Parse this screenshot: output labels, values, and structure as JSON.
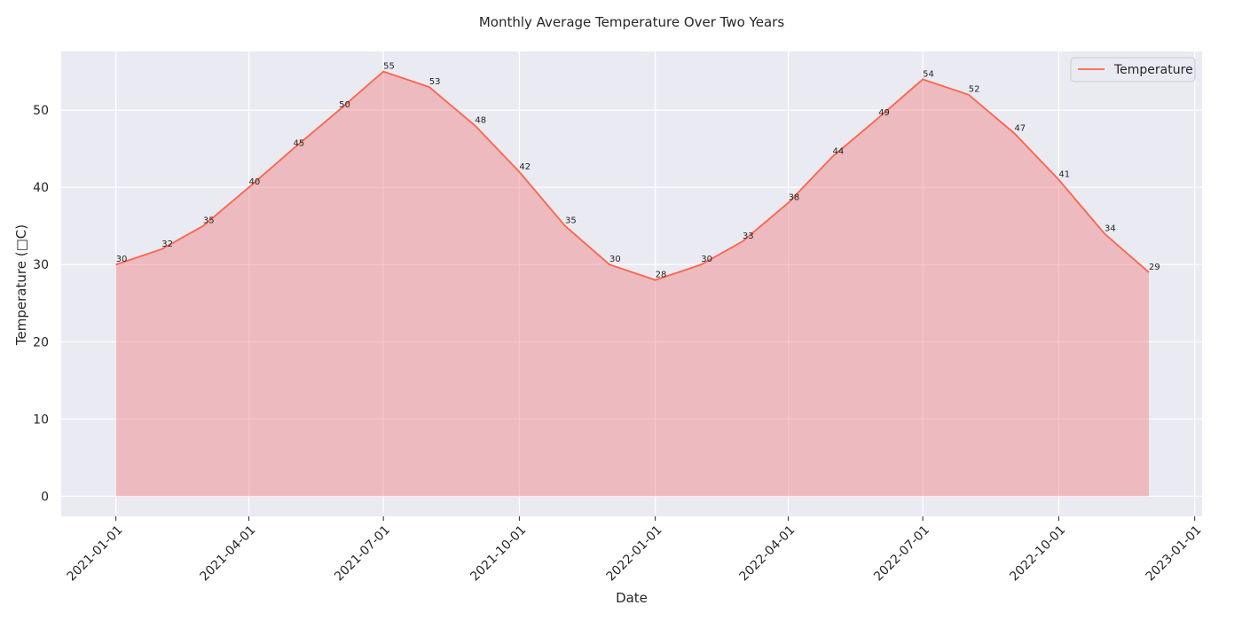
{
  "chart_data": {
    "type": "area",
    "title": "Monthly Average Temperature Over Two Years",
    "xlabel": "Date",
    "ylabel": "Temperature (□C)",
    "x": [
      "2021-01-01",
      "2021-02-01",
      "2021-03-01",
      "2021-04-01",
      "2021-05-01",
      "2021-06-01",
      "2021-07-01",
      "2021-08-01",
      "2021-09-01",
      "2021-10-01",
      "2021-11-01",
      "2021-12-01",
      "2022-01-01",
      "2022-02-01",
      "2022-03-01",
      "2022-04-01",
      "2022-05-01",
      "2022-06-01",
      "2022-07-01",
      "2022-08-01",
      "2022-09-01",
      "2022-10-01",
      "2022-11-01",
      "2022-12-01"
    ],
    "series": [
      {
        "name": "Temperature",
        "values": [
          30,
          32,
          35,
          40,
          45,
          50,
          55,
          53,
          48,
          42,
          35,
          30,
          28,
          30,
          33,
          38,
          44,
          49,
          54,
          52,
          47,
          41,
          34,
          29
        ]
      }
    ],
    "xticks": [
      "2021-01-01",
      "2021-04-01",
      "2021-07-01",
      "2021-10-01",
      "2022-01-01",
      "2022-04-01",
      "2022-07-01",
      "2022-10-01",
      "2023-01-01"
    ],
    "yticks": [
      0,
      10,
      20,
      30,
      40,
      50
    ],
    "xlim": [
      "2020-11-25",
      "2023-01-06"
    ],
    "ylim": [
      -2.6,
      57.6
    ],
    "grid": true,
    "legend_position": "top-right",
    "colors": {
      "line": "#ff6347",
      "fill": "#f08080",
      "background": "#eaeaf2",
      "grid": "#ffffff"
    }
  }
}
